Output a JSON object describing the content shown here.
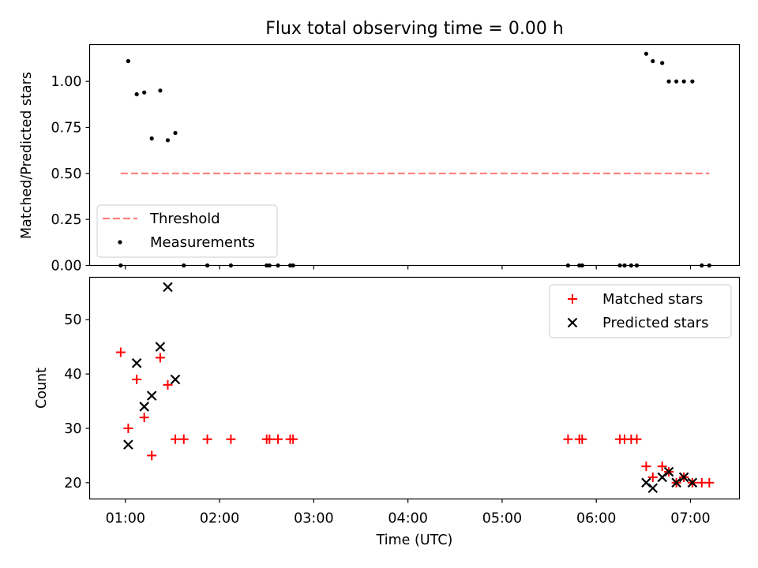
{
  "chart_data": [
    {
      "type": "scatter",
      "title": "Flux total observing time = 0.00 h",
      "xlabel": "",
      "ylabel": "Matched/Predicted stars",
      "xlim": [
        0.62,
        7.52
      ],
      "ylim": [
        0.0,
        1.2
      ],
      "yticks": [
        0.0,
        0.25,
        0.5,
        0.75,
        1.0
      ],
      "ytick_labels": [
        "0.00",
        "0.25",
        "0.50",
        "0.75",
        "1.00"
      ],
      "legend": {
        "location": "lower-left",
        "entries": [
          "Threshold",
          "Measurements"
        ]
      },
      "threshold": {
        "name": "Threshold",
        "color": "#ff7f7f",
        "y": 0.5,
        "x_start": 0.95,
        "x_end": 7.2
      },
      "series": [
        {
          "name": "Measurements",
          "color": "#000000",
          "x": [
            0.95,
            1.03,
            1.12,
            1.2,
            1.28,
            1.37,
            1.45,
            1.53,
            1.62,
            1.87,
            2.12,
            2.5,
            2.53,
            2.62,
            2.75,
            2.78,
            5.7,
            5.82,
            5.85,
            6.25,
            6.3,
            6.37,
            6.43,
            6.53,
            6.6,
            6.7,
            6.77,
            6.85,
            6.93,
            7.02,
            7.12,
            7.2
          ],
          "y": [
            0.0,
            1.11,
            0.93,
            0.94,
            0.69,
            0.95,
            0.68,
            0.72,
            0.0,
            0.0,
            0.0,
            0.0,
            0.0,
            0.0,
            0.0,
            0.0,
            0.0,
            0.0,
            0.0,
            0.0,
            0.0,
            0.0,
            0.0,
            1.15,
            1.11,
            1.1,
            1.0,
            1.0,
            1.0,
            1.0,
            0.0,
            0.0
          ]
        }
      ]
    },
    {
      "type": "scatter",
      "title": "",
      "xlabel": "Time (UTC)",
      "ylabel": "Count",
      "xlim": [
        0.62,
        7.52
      ],
      "ylim": [
        17.0,
        57.8
      ],
      "yticks": [
        20,
        30,
        40,
        50
      ],
      "ytick_labels": [
        "20",
        "30",
        "40",
        "50"
      ],
      "xticks": [
        1,
        2,
        3,
        4,
        5,
        6,
        7
      ],
      "xtick_labels": [
        "01:00",
        "02:00",
        "03:00",
        "04:00",
        "05:00",
        "06:00",
        "07:00"
      ],
      "legend": {
        "location": "upper-right",
        "entries": [
          "Matched stars",
          "Predicted stars"
        ]
      },
      "series": [
        {
          "name": "Matched stars",
          "color": "#ff0000",
          "marker": "+",
          "x": [
            0.95,
            1.03,
            1.12,
            1.2,
            1.28,
            1.37,
            1.45,
            1.53,
            1.62,
            1.87,
            2.12,
            2.5,
            2.53,
            2.62,
            2.75,
            2.78,
            5.7,
            5.82,
            5.85,
            6.25,
            6.3,
            6.37,
            6.43,
            6.53,
            6.6,
            6.7,
            6.77,
            6.85,
            6.93,
            7.02,
            7.12,
            7.2
          ],
          "y": [
            44,
            30,
            39,
            32,
            25,
            43,
            38,
            28,
            28,
            28,
            28,
            28,
            28,
            28,
            28,
            28,
            28,
            28,
            28,
            28,
            28,
            28,
            28,
            23,
            21,
            23,
            22,
            20,
            21,
            20,
            20,
            20
          ]
        },
        {
          "name": "Predicted stars",
          "color": "#000000",
          "marker": "x",
          "x": [
            1.03,
            1.12,
            1.2,
            1.28,
            1.37,
            1.45,
            1.53,
            6.53,
            6.6,
            6.7,
            6.77,
            6.85,
            6.93,
            7.02
          ],
          "y": [
            27,
            42,
            34,
            36,
            45,
            56,
            39,
            20,
            19,
            21,
            22,
            20,
            21,
            20
          ]
        }
      ]
    }
  ]
}
